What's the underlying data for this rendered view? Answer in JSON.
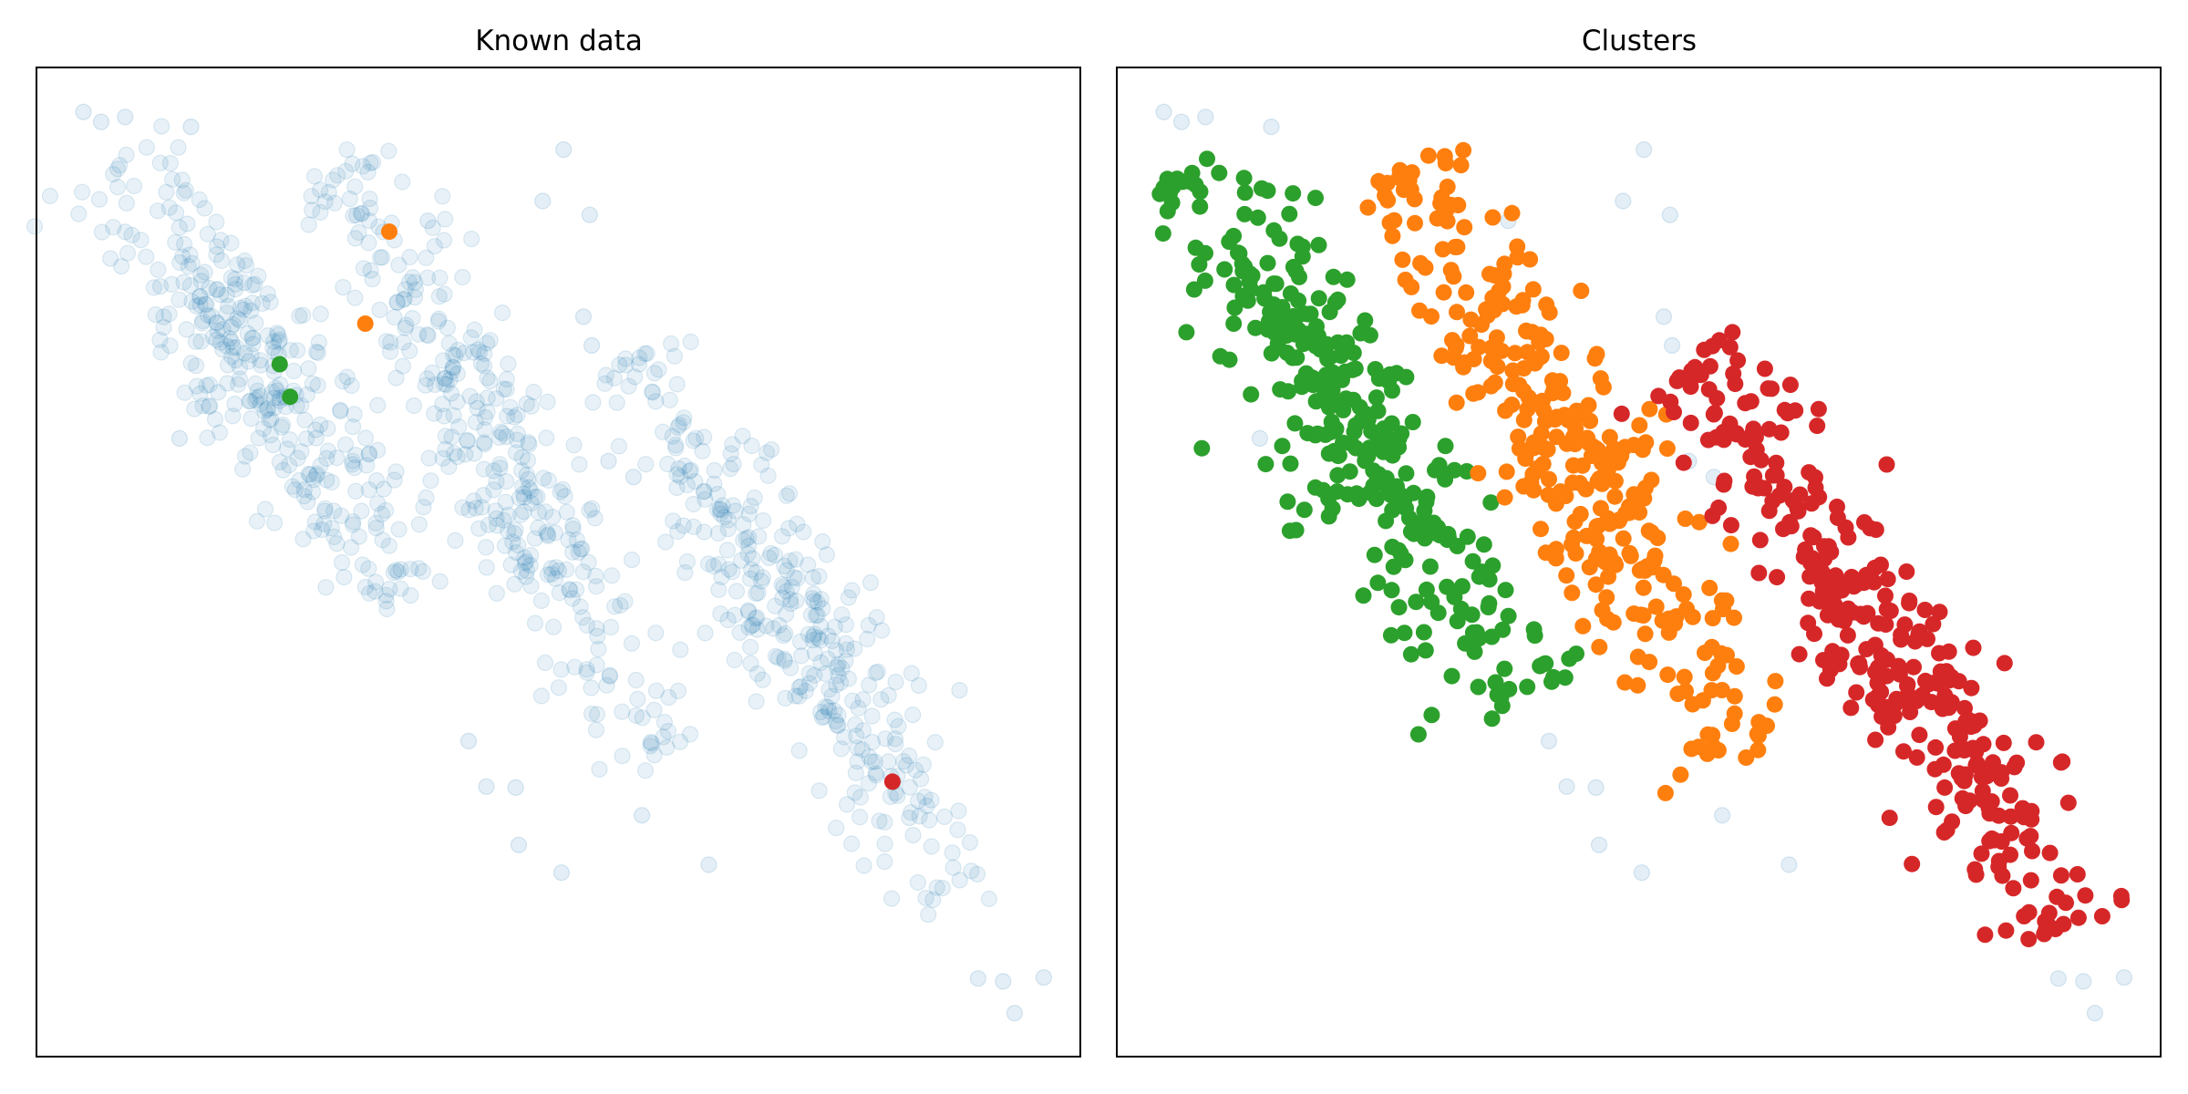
{
  "figure": {
    "colors": {
      "known": "#1f77b4",
      "cluster_green": "#2ca02c",
      "cluster_orange": "#ff7f0e",
      "cluster_red": "#d62728"
    }
  },
  "chart_data": [
    {
      "type": "scatter",
      "title": "Known data",
      "xlabel": "",
      "ylabel": "",
      "xlim": [
        0,
        1
      ],
      "ylim": [
        0,
        1
      ],
      "grid": false,
      "ticks": false,
      "note_background": "about 1000 points in three parallel diagonal bands, drawn faint blue",
      "background_bands": [
        {
          "from": [
            0.08,
            0.89
          ],
          "to": [
            0.35,
            0.48
          ],
          "count": 330
        },
        {
          "from": [
            0.3,
            0.88
          ],
          "to": [
            0.59,
            0.32
          ],
          "count": 330
        },
        {
          "from": [
            0.58,
            0.7
          ],
          "to": [
            0.88,
            0.18
          ],
          "count": 330
        }
      ],
      "series": [
        {
          "color": "#ff7f0e",
          "x": [
            0.338,
            0.315
          ],
          "y": [
            0.834,
            0.741
          ]
        },
        {
          "color": "#2ca02c",
          "x": [
            0.233,
            0.243
          ],
          "y": [
            0.7,
            0.667
          ]
        },
        {
          "color": "#d62728",
          "x": [
            0.82
          ],
          "y": [
            0.278
          ]
        }
      ]
    },
    {
      "type": "scatter",
      "title": "Clusters",
      "xlabel": "",
      "ylabel": "",
      "xlim": [
        0,
        1
      ],
      "ylim": [
        0,
        1
      ],
      "grid": false,
      "ticks": false,
      "clusters": [
        {
          "color": "#2ca02c",
          "from": [
            0.08,
            0.89
          ],
          "to": [
            0.38,
            0.37
          ],
          "count": 330
        },
        {
          "color": "#ff7f0e",
          "from": [
            0.28,
            0.89
          ],
          "to": [
            0.6,
            0.31
          ],
          "count": 330
        },
        {
          "color": "#d62728",
          "from": [
            0.56,
            0.7
          ],
          "to": [
            0.9,
            0.14
          ],
          "count": 330
        }
      ]
    }
  ]
}
